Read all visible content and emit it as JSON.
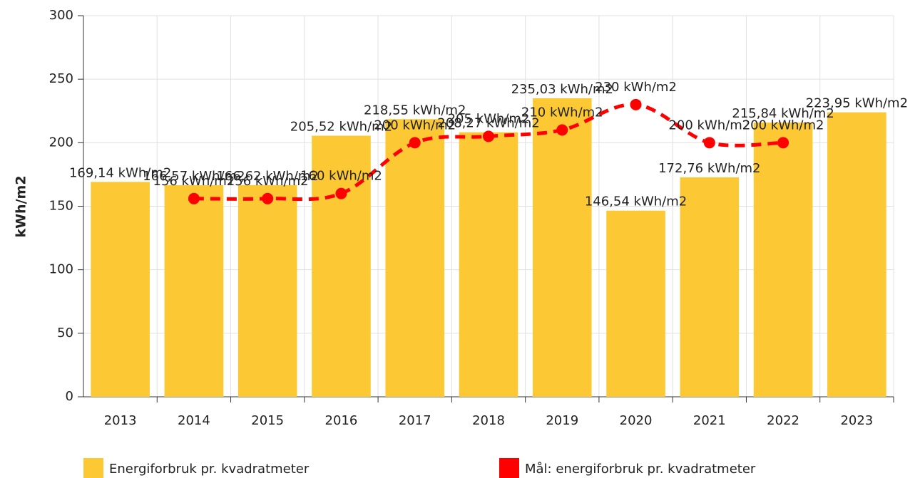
{
  "chart_data": {
    "type": "bar_line",
    "y_label": "kWh/m2",
    "categories": [
      "2013",
      "2014",
      "2015",
      "2016",
      "2017",
      "2018",
      "2019",
      "2020",
      "2021",
      "2022",
      "2023"
    ],
    "series": [
      {
        "name": "Energiforbruk pr. kvadratmeter",
        "type": "bar",
        "color": "#fcc934",
        "values": [
          169.14,
          166.57,
          166.62,
          205.52,
          218.55,
          208.27,
          235.03,
          146.54,
          172.76,
          215.84,
          223.95
        ],
        "value_labels": [
          "169,14 kWh/m2",
          "166,57 kWh/m2",
          "166,62 kWh/m2",
          "205,52 kWh/m2",
          "218,55 kWh/m2",
          "208,27 kWh/m2",
          "235,03 kWh/m2",
          "146,54 kWh/m2",
          "172,76 kWh/m2",
          "215,84 kWh/m2",
          "223,95 kWh/m2"
        ]
      },
      {
        "name": "Mål: energiforbruk pr. kvadratmeter",
        "type": "line",
        "color": "#ff0000",
        "values": [
          null,
          156,
          156,
          160,
          200,
          205,
          210,
          230,
          200,
          200,
          null
        ],
        "value_labels": [
          null,
          "156 kWh/m2",
          "156 kWh/m2",
          "160 kWh/m2",
          "200 kWh/m2",
          "205 kWh/m2",
          "210 kWh/m2",
          "230 kWh/m2",
          "200 kWh/m2",
          "200 kWh/m2",
          null
        ]
      }
    ],
    "ylim": [
      0,
      300
    ],
    "yticks": [
      0,
      50,
      100,
      150,
      200,
      250,
      300
    ],
    "grid": true
  }
}
